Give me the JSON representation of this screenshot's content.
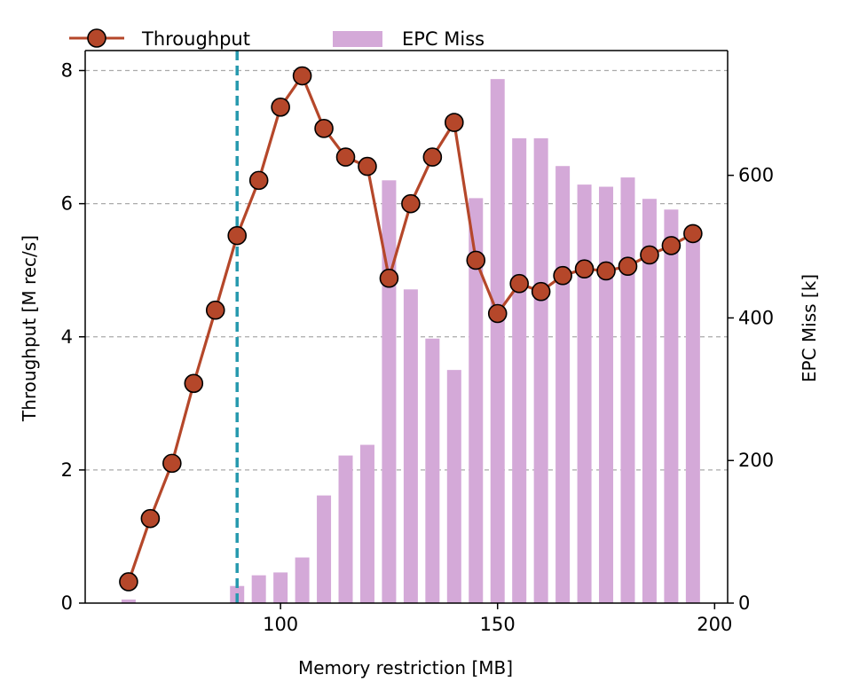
{
  "chart_data": {
    "type": "bar+line",
    "xlabel": "Memory restriction [MB]",
    "ylabel_left": "Throughput [M rec/s]",
    "ylabel_right": "EPC Miss [k]",
    "xlim": [
      55,
      203
    ],
    "ylim_left": [
      0,
      8.3
    ],
    "ylim_right": [
      0,
      775
    ],
    "xticks": [
      100,
      150,
      200
    ],
    "yticks_left": [
      0,
      2,
      4,
      6,
      8
    ],
    "yticks_right": [
      0,
      200,
      400,
      600
    ],
    "grid": "horizontal dashed on left axis",
    "legend_placement": "top, above plot",
    "vline_x": 90,
    "series": [
      {
        "name": "Throughput",
        "kind": "line",
        "axis": "left",
        "x": [
          65,
          70,
          75,
          80,
          85,
          90,
          95,
          100,
          105,
          110,
          115,
          120,
          125,
          130,
          135,
          140,
          145,
          150,
          155,
          160,
          165,
          170,
          175,
          180,
          185,
          190,
          195
        ],
        "values": [
          0.32,
          1.27,
          2.1,
          3.3,
          4.4,
          5.52,
          6.35,
          7.45,
          7.92,
          7.13,
          6.7,
          6.56,
          4.88,
          6.0,
          6.7,
          7.22,
          5.15,
          4.35,
          4.8,
          4.68,
          4.92,
          5.02,
          4.99,
          5.06,
          5.23,
          5.37,
          5.55
        ]
      },
      {
        "name": "EPC Miss",
        "kind": "bar",
        "axis": "right",
        "x": [
          65,
          70,
          75,
          80,
          85,
          90,
          95,
          100,
          105,
          110,
          115,
          120,
          125,
          130,
          135,
          140,
          145,
          150,
          155,
          160,
          165,
          170,
          175,
          180,
          185,
          190,
          195
        ],
        "values": [
          5,
          0,
          0,
          0,
          0,
          24,
          39,
          43,
          64,
          151,
          207,
          222,
          593,
          440,
          371,
          327,
          568,
          735,
          652,
          652,
          613,
          587,
          584,
          597,
          567,
          552,
          518
        ]
      }
    ],
    "colors": {
      "line": "#b5472a",
      "marker_edge": "#000000",
      "bar": "#d4a9d8",
      "vline": "#2699ae",
      "grid": "#aaaaaa"
    }
  }
}
